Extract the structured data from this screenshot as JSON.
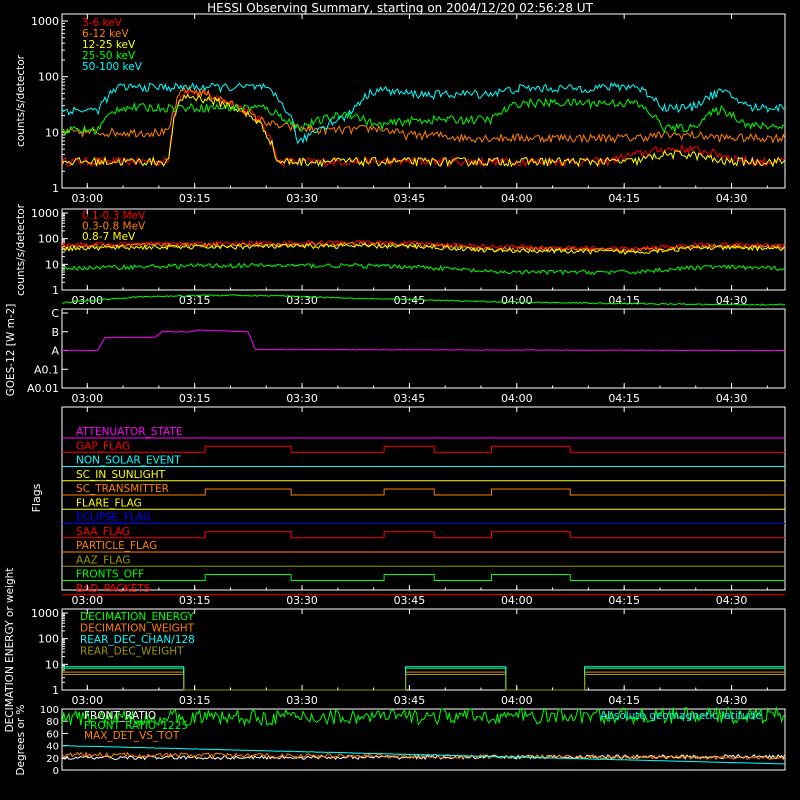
{
  "title": "HESSI Observing Summary, starting on 2004/12/20 02:56:28 UT",
  "time_ticks": [
    "03:00",
    "03:15",
    "03:30",
    "03:45",
    "04:00",
    "04:15",
    "04:30"
  ],
  "chart_data": [
    {
      "type": "line",
      "panel": "lightcurves-low",
      "ylabel": "counts/s/detector",
      "yscale": "log",
      "ylim": [
        1,
        1000
      ],
      "yticks": [
        "1",
        "10",
        "100",
        "1000"
      ],
      "x_unit": "minutes after 02:56:28 UT",
      "xlim": [
        0,
        101
      ],
      "legend_placement": "top-left",
      "series": [
        {
          "name": "3-6 keV",
          "color": "#ff0000",
          "x": [
            0,
            15,
            17,
            20,
            24,
            27,
            30,
            33,
            36,
            40,
            44,
            48,
            52,
            56,
            60,
            64,
            68,
            72,
            76,
            80,
            84,
            88,
            92,
            96,
            101
          ],
          "values": [
            3,
            3,
            55,
            48,
            32,
            20,
            3,
            3,
            3,
            3,
            3,
            3,
            3,
            3,
            3,
            3,
            3,
            3,
            3,
            4,
            5,
            5,
            4,
            3,
            3
          ]
        },
        {
          "name": "6-12 keV",
          "color": "#ff8000",
          "x": [
            0,
            15,
            17,
            20,
            24,
            27,
            30,
            33,
            36,
            40,
            44,
            48,
            52,
            56,
            60,
            64,
            68,
            72,
            76,
            80,
            84,
            88,
            92,
            96,
            101
          ],
          "values": [
            10,
            10,
            60,
            50,
            30,
            18,
            13,
            12,
            11,
            11,
            12,
            9,
            9,
            8,
            8,
            8,
            8,
            8,
            8,
            8,
            9,
            9,
            8,
            8,
            8
          ]
        },
        {
          "name": "12-25 keV",
          "color": "#ffff00",
          "x": [
            0,
            15,
            17,
            20,
            24,
            27,
            30,
            33,
            36,
            40,
            44,
            48,
            52,
            56,
            60,
            64,
            68,
            72,
            76,
            80,
            84,
            88,
            92,
            96,
            101
          ],
          "values": [
            3,
            3,
            45,
            40,
            28,
            17,
            3,
            3,
            3,
            3,
            3,
            3,
            3,
            3,
            3,
            3,
            3,
            3,
            3,
            3,
            4,
            4,
            3,
            3,
            3
          ]
        },
        {
          "name": "25-50 keV",
          "color": "#00ff00",
          "x": [
            0,
            5,
            8,
            10,
            15,
            20,
            25,
            28,
            33,
            40,
            44,
            48,
            52,
            60,
            64,
            68,
            72,
            80,
            84,
            88,
            92,
            96,
            101
          ],
          "values": [
            11,
            11,
            28,
            28,
            28,
            28,
            28,
            28,
            12,
            22,
            13,
            16,
            17,
            17,
            34,
            34,
            34,
            34,
            12,
            12,
            26,
            13,
            13
          ]
        },
        {
          "name": "50-100 keV",
          "color": "#00ffff",
          "x": [
            0,
            5,
            8,
            10,
            15,
            20,
            25,
            28,
            33,
            40,
            44,
            48,
            52,
            60,
            64,
            68,
            72,
            80,
            84,
            88,
            92,
            96,
            101
          ],
          "values": [
            25,
            25,
            65,
            65,
            65,
            65,
            65,
            65,
            6,
            20,
            60,
            50,
            48,
            50,
            62,
            62,
            62,
            68,
            28,
            28,
            55,
            28,
            28
          ]
        }
      ]
    },
    {
      "type": "line",
      "panel": "lightcurves-high",
      "ylabel": "counts/s/detector",
      "yscale": "log",
      "ylim": [
        1,
        1000
      ],
      "yticks": [
        "1",
        "10",
        "100",
        "1000"
      ],
      "legend_placement": "top-left",
      "series": [
        {
          "name": "0.1-0.3 MeV",
          "color": "#ff0000",
          "x": [
            0,
            10,
            20,
            30,
            40,
            50,
            60,
            70,
            80,
            90,
            101
          ],
          "values": [
            60,
            62,
            65,
            68,
            72,
            65,
            50,
            45,
            40,
            60,
            55
          ]
        },
        {
          "name": "0.3-0.8 MeV",
          "color": "#ff8000",
          "x": [
            0,
            10,
            20,
            30,
            40,
            50,
            60,
            70,
            80,
            90,
            101
          ],
          "values": [
            50,
            55,
            57,
            58,
            62,
            56,
            40,
            38,
            35,
            52,
            48
          ]
        },
        {
          "name": "0.8-7 MeV",
          "color": "#ffff00",
          "x": [
            0,
            10,
            20,
            30,
            40,
            50,
            60,
            70,
            80,
            90,
            101
          ],
          "values": [
            42,
            46,
            48,
            50,
            52,
            50,
            35,
            33,
            30,
            45,
            42
          ]
        },
        {
          "name": "",
          "color": "#00ff00",
          "x": [
            0,
            10,
            20,
            30,
            40,
            50,
            60,
            70,
            80,
            90,
            101
          ],
          "values": [
            7,
            8,
            9,
            9,
            9,
            8,
            5,
            5,
            5,
            8,
            7
          ]
        }
      ]
    },
    {
      "type": "line",
      "panel": "goes",
      "ylabel": "GOES-12 [W m-2]",
      "yticks": [
        "A0.01",
        "A0.1",
        "A",
        "B",
        "C"
      ],
      "series": [
        {
          "name": "",
          "color": "#00ff00",
          "x": [
            0,
            10,
            20,
            30,
            40,
            50,
            60,
            70,
            80,
            90,
            101
          ],
          "values": [
            4.55,
            4.85,
            4.95,
            4.92,
            4.8,
            4.7,
            4.6,
            4.55,
            4.5,
            4.45,
            4.45
          ]
        },
        {
          "name": "",
          "color": "#ff00ff",
          "x": [
            0,
            5,
            6,
            13,
            14,
            18,
            19,
            26,
            27,
            101
          ],
          "values": [
            2.0,
            2.0,
            2.7,
            2.7,
            3.0,
            3.0,
            3.1,
            3.0,
            2.05,
            2.0
          ]
        }
      ]
    },
    {
      "type": "line",
      "panel": "flags",
      "ylabel": "Flags",
      "flags": [
        {
          "name": "ATTENUATOR_STATE",
          "color": "#ff00ff"
        },
        {
          "name": "GAP_FLAG",
          "color": "#ff0000"
        },
        {
          "name": "NON_SOLAR_EVENT",
          "color": "#00ffff"
        },
        {
          "name": "SC_IN_SUNLIGHT",
          "color": "#ffff00"
        },
        {
          "name": "SC_TRANSMITTER",
          "color": "#ff8000"
        },
        {
          "name": "FLARE_FLAG",
          "color": "#ffff00"
        },
        {
          "name": "ECLIPSE_FLAG",
          "color": "#0000ff"
        },
        {
          "name": "SAA_FLAG",
          "color": "#ff0000"
        },
        {
          "name": "PARTICLE_FLAG",
          "color": "#ff8000"
        },
        {
          "name": "AAZ_FLAG",
          "color": "#999900"
        },
        {
          "name": "FRONTS_OFF",
          "color": "#00ff00"
        },
        {
          "name": "BAD_PACKETS",
          "color": "#ff0000"
        }
      ]
    },
    {
      "type": "line",
      "panel": "decimation",
      "ylabel": "DECIMATION ENERGY or weight",
      "yscale": "log",
      "ylim": [
        1,
        1000
      ],
      "yticks": [
        "1",
        "10",
        "100",
        "1000"
      ],
      "series": [
        {
          "name": "DECIMATION_ENERGY",
          "color": "#00ff00"
        },
        {
          "name": "DECIMATION_WEIGHT",
          "color": "#ff8000"
        },
        {
          "name": "REAR_DEC_CHAN/128",
          "color": "#00ffff"
        },
        {
          "name": "REAR_DEC_WEIGHT",
          "color": "#999900"
        }
      ]
    },
    {
      "type": "line",
      "panel": "ratios",
      "ylabel": "Degrees or %",
      "ylim": [
        0,
        100
      ],
      "yticks": [
        "0",
        "20",
        "40",
        "60",
        "80",
        "100"
      ],
      "series": [
        {
          "name": "FRONT_RATIO",
          "color": "#ffffff"
        },
        {
          "name": "FRONT_RATIO_1225",
          "color": "#00ff00"
        },
        {
          "name": "MAX_DET_VS_TOT",
          "color": "#ff8000"
        },
        {
          "name": "Absolute geomagnetic latitude",
          "color": "#00ffff"
        }
      ]
    }
  ]
}
